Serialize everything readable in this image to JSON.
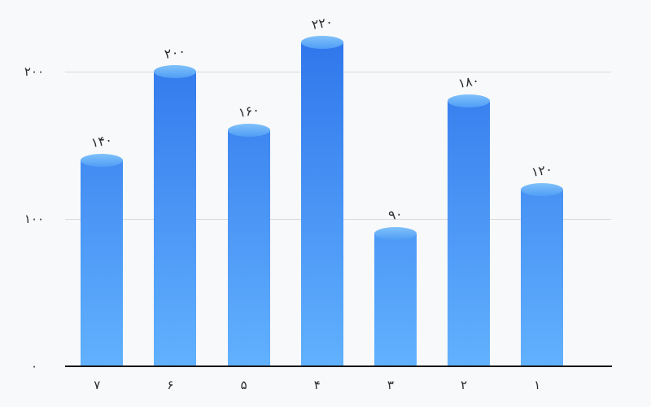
{
  "chart_data": {
    "type": "bar",
    "bar_shape": "cylinder",
    "direction": "rtl",
    "title": "",
    "xlabel": "",
    "ylabel": "",
    "categories": [
      "۱",
      "۲",
      "۳",
      "۴",
      "۵",
      "۶",
      "۷"
    ],
    "values": [
      120,
      180,
      90,
      220,
      160,
      200,
      140
    ],
    "bar_labels": [
      "۱۲۰",
      "۱۸۰",
      "۹۰",
      "۲۲۰",
      "۱۶۰",
      "۲۰۰",
      "۱۴۰"
    ],
    "y_ticks": [
      {
        "value": 0,
        "label": "۰"
      },
      {
        "value": 100,
        "label": "۱۰۰"
      },
      {
        "value": 200,
        "label": "۲۰۰"
      }
    ],
    "ylim": [
      0,
      248
    ],
    "grid": true,
    "legend": "none",
    "colors": {
      "background": "#f8f9fa",
      "bar_gradient_top": "#2a6fe9",
      "bar_gradient_bottom": "#61b1fe",
      "cap_gradient_top": "#7fc1fa",
      "cap_gradient_bottom": "#4f9df6",
      "gridline": "#d9d9d9",
      "axis": "#161616",
      "label_text": "#2b2b2b"
    }
  }
}
